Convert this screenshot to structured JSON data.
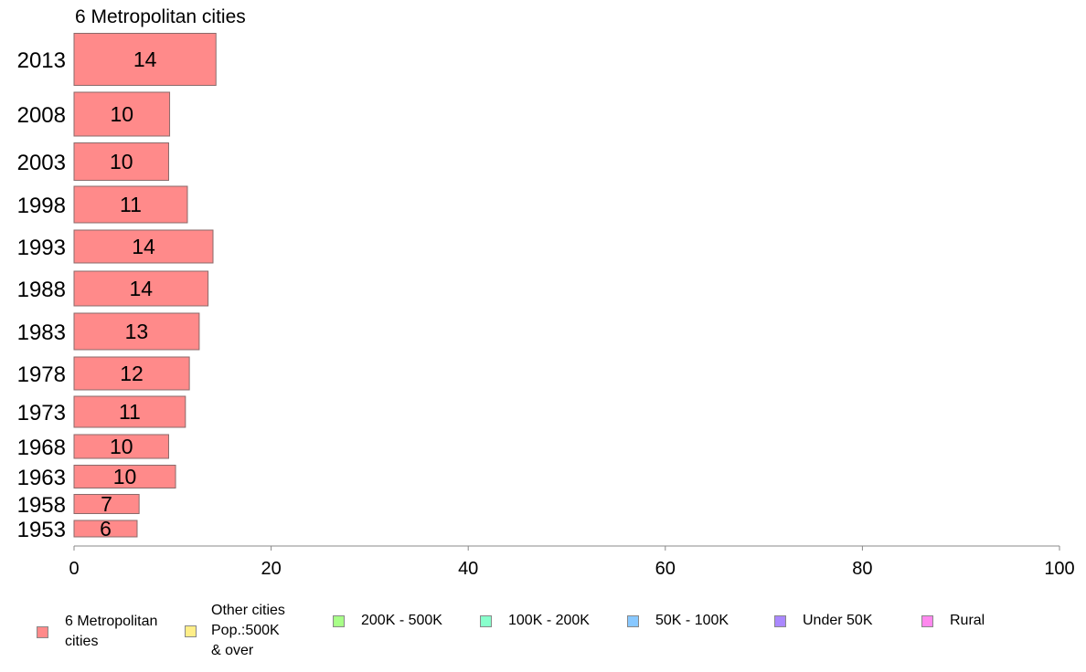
{
  "chart_data": {
    "type": "bar",
    "orientation": "horizontal",
    "title": "6 Metropolitan cities",
    "categories": [
      "2013",
      "2008",
      "2003",
      "1998",
      "1993",
      "1988",
      "1983",
      "1978",
      "1973",
      "1968",
      "1963",
      "1958",
      "1953"
    ],
    "series": [
      {
        "name": "6 Metropolitan\n cities",
        "values": [
          14.4,
          9.7,
          9.6,
          11.5,
          14.1,
          13.6,
          12.7,
          11.7,
          11.3,
          9.6,
          10.3,
          6.6,
          6.4
        ],
        "labels": [
          "14",
          "10",
          "10",
          "11",
          "14",
          "14",
          "13",
          "12",
          "11",
          "10",
          "10",
          "7",
          "6"
        ]
      }
    ],
    "xlim": [
      0,
      100
    ],
    "xticks": [
      "0",
      "20",
      "40",
      "60",
      "80",
      "100"
    ],
    "grid": false,
    "legend_position": "bottom"
  },
  "legend": [
    {
      "label": "6 Metropolitan\n cities",
      "color": "#ff8a8a"
    },
    {
      "label": "Other cities\nPop.:500K\n & over",
      "color": "#ffee88"
    },
    {
      "label": "200K - 500K",
      "color": "#a8ff88"
    },
    {
      "label": "100K - 200K",
      "color": "#88ffcc"
    },
    {
      "label": "50K - 100K",
      "color": "#88c8ff"
    },
    {
      "label": "Under 50K",
      "color": "#aa88ff"
    },
    {
      "label": "Rural",
      "color": "#ff88ee"
    }
  ]
}
